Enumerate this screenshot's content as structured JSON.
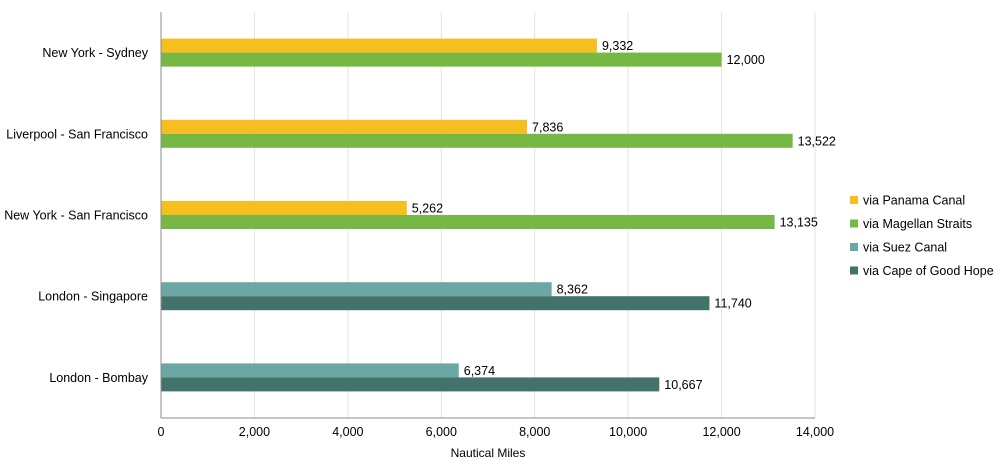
{
  "chart_data": {
    "type": "bar",
    "orientation": "horizontal",
    "title": "",
    "xlabel": "Nautical Miles",
    "ylabel": "",
    "xlim": [
      0,
      14000
    ],
    "x_ticks": [
      0,
      2000,
      4000,
      6000,
      8000,
      10000,
      12000,
      14000
    ],
    "x_tick_labels": [
      "0",
      "2,000",
      "4,000",
      "6,000",
      "8,000",
      "10,000",
      "12,000",
      "14,000"
    ],
    "grid": true,
    "legend_position": "right",
    "categories": [
      "New York - Sydney",
      "Liverpool - San Francisco",
      "New York - San Francisco",
      "London - Singapore",
      "London - Bombay"
    ],
    "series": [
      {
        "name": "via Panama Canal",
        "color": "#F6BE1E",
        "values": [
          9332,
          7836,
          5262,
          null,
          null
        ]
      },
      {
        "name": "via Magellan Straits",
        "color": "#76B843",
        "values": [
          12000,
          13522,
          13135,
          null,
          null
        ]
      },
      {
        "name": "via Suez Canal",
        "color": "#6BA8A4",
        "values": [
          null,
          null,
          null,
          8362,
          6374
        ]
      },
      {
        "name": "via Cape of Good Hope",
        "color": "#43726D",
        "values": [
          null,
          null,
          null,
          11740,
          10667
        ]
      }
    ],
    "value_labels": [
      [
        "9,332",
        "7,836",
        "5,262",
        null,
        null
      ],
      [
        "12,000",
        "13,522",
        "13,135",
        null,
        null
      ],
      [
        null,
        null,
        null,
        "8,362",
        "6,374"
      ],
      [
        null,
        null,
        null,
        "11,740",
        "10,667"
      ]
    ]
  }
}
